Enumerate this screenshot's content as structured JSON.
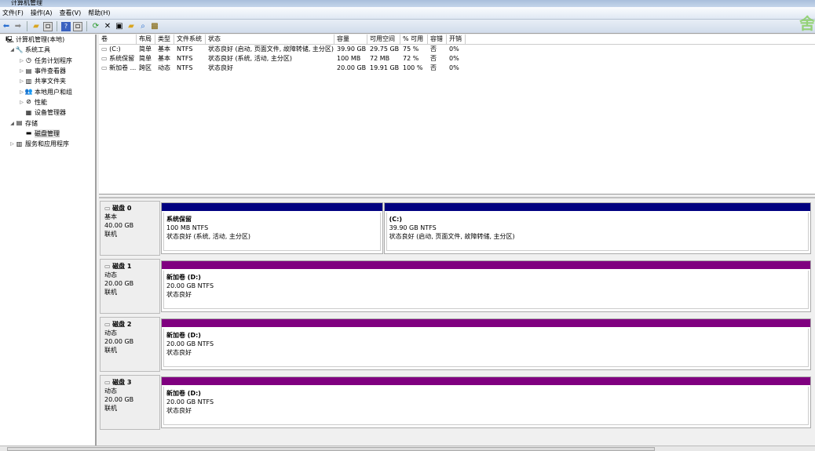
{
  "window": {
    "title": "计算机管理"
  },
  "menu": [
    "文件(F)",
    "操作(A)",
    "查看(V)",
    "帮助(H)"
  ],
  "toolbar_icons": [
    "back-icon",
    "forward-icon",
    "up-folder-icon",
    "show-hide-tree-icon",
    "help-icon",
    "show-hide-action-icon",
    "refresh-icon",
    "delete-icon",
    "properties-icon",
    "open-icon",
    "search-icon",
    "disk-settings-icon"
  ],
  "watermark": "舍",
  "tree": [
    {
      "label": "计算机管理(本地)",
      "level": 0,
      "icon": "computer-icon",
      "expander": ""
    },
    {
      "label": "系统工具",
      "level": 1,
      "icon": "tools-icon",
      "expander": "◢"
    },
    {
      "label": "任务计划程序",
      "level": 2,
      "icon": "clock-icon",
      "expander": "▷"
    },
    {
      "label": "事件查看器",
      "level": 2,
      "icon": "event-viewer-icon",
      "expander": "▷"
    },
    {
      "label": "共享文件夹",
      "level": 2,
      "icon": "shared-folder-icon",
      "expander": "▷"
    },
    {
      "label": "本地用户和组",
      "level": 2,
      "icon": "users-icon",
      "expander": "▷"
    },
    {
      "label": "性能",
      "level": 2,
      "icon": "performance-icon",
      "expander": "▷"
    },
    {
      "label": "设备管理器",
      "level": 2,
      "icon": "device-manager-icon",
      "expander": ""
    },
    {
      "label": "存储",
      "level": 1,
      "icon": "storage-icon",
      "expander": "◢"
    },
    {
      "label": "磁盘管理",
      "level": 2,
      "icon": "disk-management-icon",
      "expander": "",
      "selected": true
    },
    {
      "label": "服务和应用程序",
      "level": 1,
      "icon": "services-icon",
      "expander": "▷"
    }
  ],
  "table": {
    "headers": [
      "卷",
      "布局",
      "类型",
      "文件系统",
      "状态",
      "容量",
      "可用空间",
      "% 可用",
      "容错",
      "开销"
    ],
    "rows": [
      [
        "(C:)",
        "简单",
        "基本",
        "NTFS",
        "状态良好 (启动, 页面文件, 故障转储, 主分区)",
        "39.90 GB",
        "29.75 GB",
        "75 %",
        "否",
        "0%"
      ],
      [
        "系统保留",
        "简单",
        "基本",
        "NTFS",
        "状态良好 (系统, 活动, 主分区)",
        "100 MB",
        "72 MB",
        "72 %",
        "否",
        "0%"
      ],
      [
        "新加卷 ...",
        "跨区",
        "动态",
        "NTFS",
        "状态良好",
        "20.00 GB",
        "19.91 GB",
        "100 %",
        "否",
        "0%"
      ]
    ]
  },
  "colors": {
    "basic": "#000080",
    "spanned": "#800080"
  },
  "disks": [
    {
      "name": "磁盘 0",
      "type": "基本",
      "size": "40.00 GB",
      "status": "联机",
      "partitions": [
        {
          "name": "系统保留",
          "size": "100 MB NTFS",
          "status": "状态良好 (系统, 活动, 主分区)",
          "kind": "basic"
        },
        {
          "name": "(C:)",
          "size": "39.90 GB NTFS",
          "status": "状态良好 (启动, 页面文件, 故障转储, 主分区)",
          "kind": "basic"
        }
      ]
    },
    {
      "name": "磁盘 1",
      "type": "动态",
      "size": "20.00 GB",
      "status": "联机",
      "partitions": [
        {
          "name": "新加卷  (D:)",
          "size": "20.00 GB NTFS",
          "status": "状态良好",
          "kind": "spanned"
        }
      ]
    },
    {
      "name": "磁盘 2",
      "type": "动态",
      "size": "20.00 GB",
      "status": "联机",
      "partitions": [
        {
          "name": "新加卷  (D:)",
          "size": "20.00 GB NTFS",
          "status": "状态良好",
          "kind": "spanned"
        }
      ]
    },
    {
      "name": "磁盘 3",
      "type": "动态",
      "size": "20.00 GB",
      "status": "联机",
      "partitions": [
        {
          "name": "新加卷  (D:)",
          "size": "20.00 GB NTFS",
          "status": "状态良好",
          "kind": "spanned"
        }
      ]
    }
  ]
}
